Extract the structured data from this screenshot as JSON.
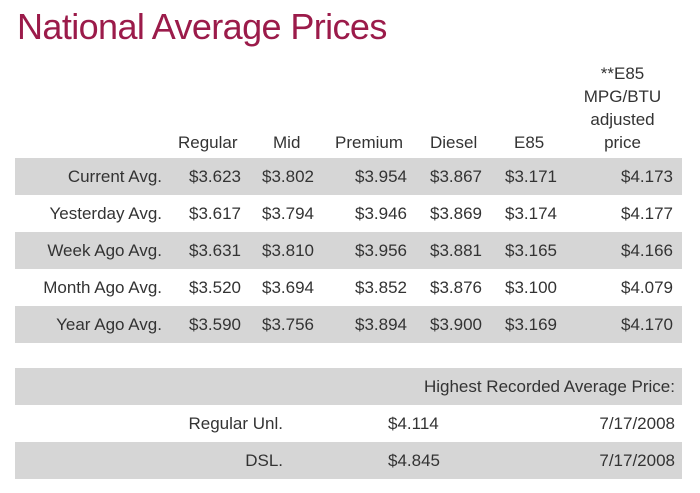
{
  "title": "National Average Prices",
  "columns": {
    "regular": "Regular",
    "mid": "Mid",
    "premium": "Premium",
    "diesel": "Diesel",
    "e85": "E85",
    "e85_adjusted": "**E85 MPG/BTU adjusted price"
  },
  "rows": [
    {
      "label": "Current Avg.",
      "regular": "$3.623",
      "mid": "$3.802",
      "premium": "$3.954",
      "diesel": "$3.867",
      "e85": "$3.171",
      "e85_adjusted": "$4.173"
    },
    {
      "label": "Yesterday Avg.",
      "regular": "$3.617",
      "mid": "$3.794",
      "premium": "$3.946",
      "diesel": "$3.869",
      "e85": "$3.174",
      "e85_adjusted": "$4.177"
    },
    {
      "label": "Week Ago Avg.",
      "regular": "$3.631",
      "mid": "$3.810",
      "premium": "$3.956",
      "diesel": "$3.881",
      "e85": "$3.165",
      "e85_adjusted": "$4.166"
    },
    {
      "label": "Month Ago Avg.",
      "regular": "$3.520",
      "mid": "$3.694",
      "premium": "$3.852",
      "diesel": "$3.876",
      "e85": "$3.100",
      "e85_adjusted": "$4.079"
    },
    {
      "label": "Year Ago Avg.",
      "regular": "$3.590",
      "mid": "$3.756",
      "premium": "$3.894",
      "diesel": "$3.900",
      "e85": "$3.169",
      "e85_adjusted": "$4.170"
    }
  ],
  "highest": {
    "heading": "Highest Recorded Average Price:",
    "rows": [
      {
        "fuel": "Regular Unl.",
        "price": "$4.114",
        "date": "7/17/2008"
      },
      {
        "fuel": "DSL.",
        "price": "$4.845",
        "date": "7/17/2008"
      }
    ]
  },
  "colors": {
    "title": "#9b1b4a",
    "row_shade": "#d6d6d6",
    "text": "#333333"
  }
}
